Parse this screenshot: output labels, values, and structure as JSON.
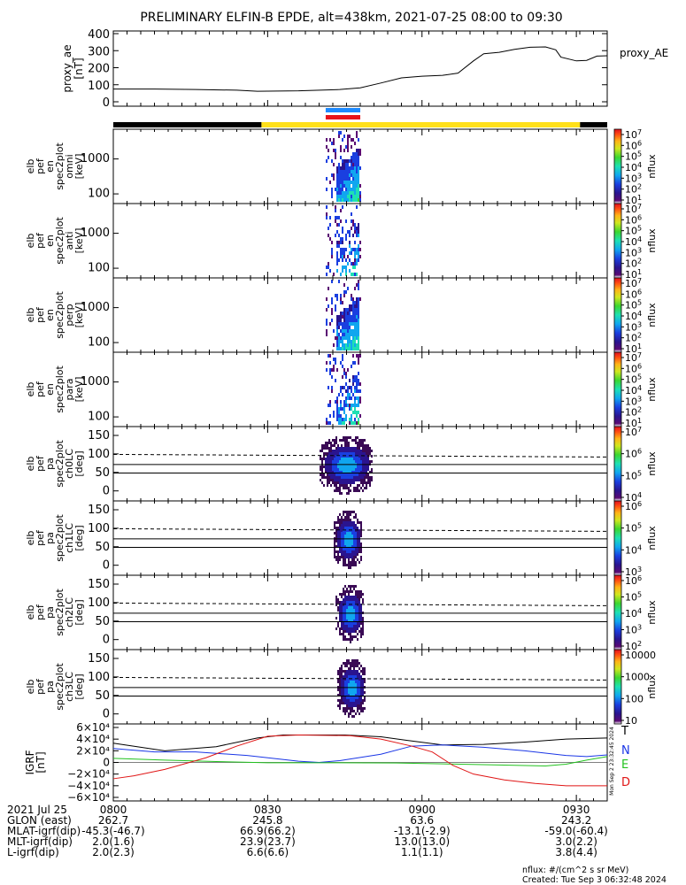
{
  "title": "PRELIMINARY ELFIN-B EPDE, alt=438km, 2021-07-25 08:00 to 09:30",
  "chart_data": [
    {
      "type": "line",
      "ylabel": [
        "proxy_ae",
        "[nT]"
      ],
      "legend": "proxy_AE",
      "ylim": [
        0,
        400
      ],
      "yticks": [
        "400",
        "300",
        "200",
        "100",
        "0"
      ],
      "x_min": [
        0,
        90
      ],
      "series": [
        {
          "name": "proxy_AE",
          "color": "#000000",
          "points": [
            [
              0,
              75
            ],
            [
              8,
              75
            ],
            [
              16,
              72
            ],
            [
              24,
              68
            ],
            [
              28,
              62
            ],
            [
              36,
              64
            ],
            [
              44,
              72
            ],
            [
              48,
              82
            ],
            [
              52,
              110
            ],
            [
              56,
              140
            ],
            [
              60,
              150
            ],
            [
              64,
              155
            ],
            [
              67,
              168
            ],
            [
              70,
              240
            ],
            [
              72,
              282
            ],
            [
              75,
              290
            ],
            [
              78,
              308
            ],
            [
              81,
              320
            ],
            [
              84,
              322
            ],
            [
              86,
              305
            ],
            [
              87,
              262
            ],
            [
              90,
              240
            ],
            [
              92,
              243
            ],
            [
              94,
              268
            ],
            [
              96,
              270
            ]
          ]
        }
      ]
    },
    {
      "type": "bar",
      "name": "science_zone_bar",
      "segments": [
        {
          "from": 0,
          "to": 0.3,
          "color": "#000000"
        },
        {
          "from": 0.3,
          "to": 0.945,
          "color": "#ffe01a"
        },
        {
          "from": 0.945,
          "to": 1.0,
          "color": "#000000"
        }
      ],
      "markers": [
        {
          "color": "#1e8aff",
          "from": 0.43,
          "to": 0.5
        },
        {
          "color": "#e8131b",
          "from": 0.43,
          "to": 0.5
        }
      ]
    },
    {
      "type": "heatmap",
      "ylabel": [
        "elb",
        "pef",
        "en",
        "spec2plot",
        "omni",
        "[keV]"
      ],
      "yticks": [
        "1000",
        "100"
      ],
      "colorbar_label": "nflux",
      "cbar": [
        "10^7",
        "10^6",
        "10^5",
        "10^4",
        "10^3",
        "10^2",
        "10^1"
      ]
    },
    {
      "type": "heatmap",
      "ylabel": [
        "elb",
        "pef",
        "en",
        "spec2plot",
        "anti",
        "[keV]"
      ],
      "yticks": [
        "1000",
        "100"
      ],
      "colorbar_label": "nflux",
      "cbar": [
        "10^7",
        "10^6",
        "10^5",
        "10^4",
        "10^3",
        "10^2",
        "10^1"
      ]
    },
    {
      "type": "heatmap",
      "ylabel": [
        "elb",
        "pef",
        "en",
        "spec2plot",
        "perp",
        "[keV]"
      ],
      "yticks": [
        "1000",
        "100"
      ],
      "colorbar_label": "nflux",
      "cbar": [
        "10^7",
        "10^6",
        "10^5",
        "10^4",
        "10^3",
        "10^2",
        "10^1"
      ]
    },
    {
      "type": "heatmap",
      "ylabel": [
        "elb",
        "pef",
        "en",
        "spec2plot",
        "para",
        "[keV]"
      ],
      "yticks": [
        "1000",
        "100"
      ],
      "colorbar_label": "nflux",
      "cbar": [
        "10^7",
        "10^6",
        "10^5",
        "10^4",
        "10^3",
        "10^2",
        "10^1"
      ]
    },
    {
      "type": "heatmap",
      "ylabel": [
        "elb",
        "pef",
        "pa",
        "spec2plot",
        "ch0LC",
        "[deg]"
      ],
      "yticks": [
        "150",
        "100",
        "50",
        "0"
      ],
      "colorbar_label": "nflux",
      "cbar": [
        "10^7",
        "10^6",
        "10^5",
        "10^4"
      ]
    },
    {
      "type": "heatmap",
      "ylabel": [
        "elb",
        "pef",
        "pa",
        "spec2plot",
        "ch1LC",
        "[deg]"
      ],
      "yticks": [
        "150",
        "100",
        "50",
        "0"
      ],
      "colorbar_label": "nflux",
      "cbar": [
        "10^6",
        "10^5",
        "10^4",
        "10^3"
      ]
    },
    {
      "type": "heatmap",
      "ylabel": [
        "elb",
        "pef",
        "pa",
        "spec2plot",
        "ch2LC",
        "[deg]"
      ],
      "yticks": [
        "150",
        "100",
        "50",
        "0"
      ],
      "colorbar_label": "nflux",
      "cbar": [
        "10^6",
        "10^5",
        "10^4",
        "10^3",
        "10^2"
      ]
    },
    {
      "type": "heatmap",
      "ylabel": [
        "elb",
        "pef",
        "pa",
        "spec2plot",
        "ch3LC",
        "[deg]"
      ],
      "yticks": [
        "150",
        "100",
        "50",
        "0"
      ],
      "colorbar_label": "nflux",
      "cbar": [
        "10000",
        "1000",
        "100",
        "10"
      ]
    },
    {
      "type": "line",
      "ylabel": [
        "IGRF",
        "[nT]"
      ],
      "ylim": [
        -60000,
        60000
      ],
      "yticks": [
        "6×10⁴",
        "4×10⁴",
        "2×10⁴",
        "0",
        "−2×10⁴",
        "−4×10⁴",
        "−6×10⁴"
      ],
      "legend": [
        "T",
        "N",
        "E",
        "D"
      ],
      "side_note": "Mon Sep 2 23:32:45 2024",
      "series": [
        {
          "name": "T",
          "color": "#000000",
          "points": [
            [
              0,
              33000
            ],
            [
              10,
              20000
            ],
            [
              20,
              27000
            ],
            [
              28,
              42000
            ],
            [
              33,
              47000
            ],
            [
              45,
              47000
            ],
            [
              52,
              44000
            ],
            [
              57,
              38000
            ],
            [
              64,
              30000
            ],
            [
              72,
              31000
            ],
            [
              80,
              35000
            ],
            [
              88,
              40000
            ],
            [
              96,
              42000
            ]
          ]
        },
        {
          "name": "N",
          "color": "#1a36e6",
          "points": [
            [
              0,
              24000
            ],
            [
              8,
              18000
            ],
            [
              16,
              18000
            ],
            [
              26,
              12000
            ],
            [
              36,
              2000
            ],
            [
              40,
              0
            ],
            [
              44,
              3000
            ],
            [
              52,
              14000
            ],
            [
              58,
              28000
            ],
            [
              64,
              30000
            ],
            [
              72,
              26000
            ],
            [
              80,
              20000
            ],
            [
              88,
              12000
            ],
            [
              92,
              10000
            ],
            [
              96,
              13000
            ]
          ]
        },
        {
          "name": "E",
          "color": "#22c21f",
          "points": [
            [
              0,
              7000
            ],
            [
              10,
              4000
            ],
            [
              20,
              1500
            ],
            [
              30,
              -500
            ],
            [
              40,
              -500
            ],
            [
              55,
              -1000
            ],
            [
              64,
              -2500
            ],
            [
              76,
              -4500
            ],
            [
              84,
              -6000
            ],
            [
              88,
              -3000
            ],
            [
              92,
              4000
            ],
            [
              96,
              10000
            ]
          ]
        },
        {
          "name": "D",
          "color": "#e01515",
          "points": [
            [
              0,
              -28000
            ],
            [
              4,
              -23000
            ],
            [
              10,
              -12000
            ],
            [
              18,
              8000
            ],
            [
              24,
              28000
            ],
            [
              30,
              45000
            ],
            [
              36,
              47000
            ],
            [
              46,
              46000
            ],
            [
              52,
              40000
            ],
            [
              58,
              28000
            ],
            [
              62,
              18000
            ],
            [
              66,
              -5000
            ],
            [
              70,
              -20000
            ],
            [
              76,
              -30000
            ],
            [
              82,
              -36000
            ],
            [
              88,
              -40000
            ],
            [
              96,
              -40000
            ]
          ]
        }
      ]
    }
  ],
  "x_axis": {
    "ticks": [
      "0800",
      "0830",
      "0900",
      "0930"
    ],
    "rows": [
      {
        "label": "2021 Jul 25",
        "values": [
          "0800",
          "0830",
          "0900",
          "0930"
        ]
      },
      {
        "label": "GLON (east)",
        "values": [
          "262.7",
          "245.8",
          "63.6",
          "243.2"
        ]
      },
      {
        "label": "MLAT-igrf(dip)",
        "values": [
          "-45.3(-46.7)",
          "66.9(66.2)",
          "-13.1(-2.9)",
          "-59.0(-60.4)"
        ]
      },
      {
        "label": "MLT-igrf(dip)",
        "values": [
          "2.0(1.6)",
          "23.9(23.7)",
          "13.0(13.0)",
          "3.0(2.2)"
        ]
      },
      {
        "label": "L-igrf(dip)",
        "values": [
          "2.0(2.3)",
          "6.6(6.6)",
          "1.1(1.1)",
          "3.8(4.4)"
        ]
      }
    ]
  },
  "footer": {
    "units": "nflux: #/(cm^2 s sr MeV)",
    "created": "Created: Tue Sep  3 06:32:48 2024"
  }
}
